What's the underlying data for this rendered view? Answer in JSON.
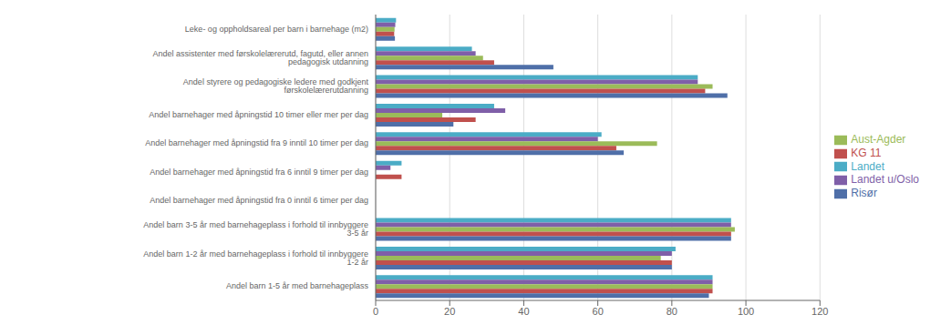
{
  "chart_data": {
    "type": "bar",
    "orientation": "horizontal",
    "categories": [
      "Leke- og oppholdsareal per barn i barnehage (m2)",
      "Andel assistenter med førskolelærerutd, fagutd, eller annen pedagogisk utdanning",
      "Andel styrere og pedagogiske ledere med godkjent førskolelærerutdanning",
      "Andel barnehager med åpningstid 10 timer eller mer per dag",
      "Andel barnehager med åpningstid fra 9 inntil 10 timer per dag",
      "Andel barnehager med åpningstid fra 6 inntil 9 timer per dag",
      "Andel barnehager med åpningstid fra 0 inntil 6 timer per dag",
      "Andel barn 3-5 år med barnehageplass i forhold til innbyggere 3-5 år",
      "Andel barn 1-2 år med barnehageplass i forhold til innbyggere 1-2 år",
      "Andel barn 1-5 år med barnehageplass"
    ],
    "series": [
      {
        "name": "Landet",
        "color": "#4bacc6",
        "values": [
          5.5,
          26,
          87,
          32,
          61,
          7,
          0,
          96,
          81,
          91
        ]
      },
      {
        "name": "Landet u/Oslo",
        "color": "#7f5fa8",
        "values": [
          5.3,
          27,
          87,
          35,
          60,
          4,
          0,
          96,
          80,
          91
        ]
      },
      {
        "name": "Aust-Agder",
        "color": "#9bbb59",
        "values": [
          5.1,
          29,
          91,
          18,
          76,
          0,
          0,
          97,
          77,
          91
        ]
      },
      {
        "name": "KG 11",
        "color": "#c0504d",
        "values": [
          5.0,
          32,
          89,
          27,
          65,
          7,
          0,
          96,
          80,
          91
        ]
      },
      {
        "name": "Risør",
        "color": "#4f6fa8",
        "values": [
          5.2,
          48,
          95,
          21,
          67,
          0,
          0,
          96,
          80,
          90
        ]
      }
    ],
    "xlim": [
      0,
      120
    ],
    "xticks": [
      0,
      20,
      40,
      60,
      80,
      100,
      120
    ],
    "grid": true,
    "legend": "right"
  }
}
